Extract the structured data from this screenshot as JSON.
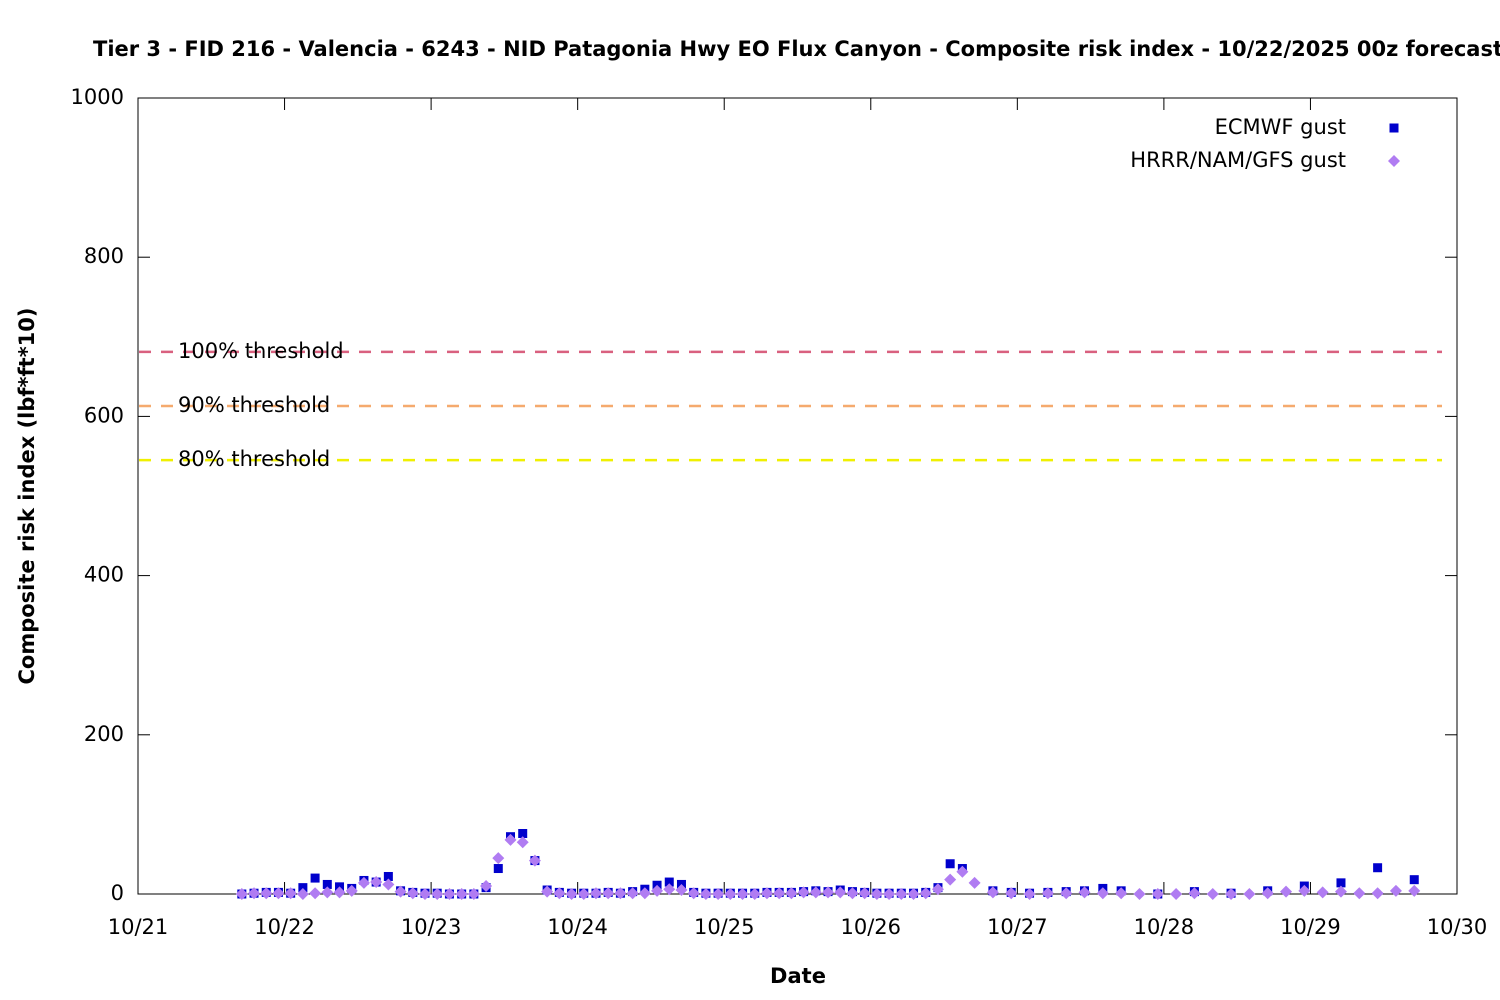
{
  "chart_data": {
    "type": "scatter",
    "title": "Tier 3 - FID 216 - Valencia - 6243 - NID Patagonia Hwy EO Flux Canyon - Composite risk index - 10/22/2025 00z forecast",
    "xlabel": "Date",
    "ylabel": "Composite risk index (lbf*ft*10)",
    "xlim": [
      0,
      216
    ],
    "xticks": [
      {
        "value": 0,
        "label": "10/21"
      },
      {
        "value": 24,
        "label": "10/22"
      },
      {
        "value": 48,
        "label": "10/23"
      },
      {
        "value": 72,
        "label": "10/24"
      },
      {
        "value": 96,
        "label": "10/25"
      },
      {
        "value": 120,
        "label": "10/26"
      },
      {
        "value": 144,
        "label": "10/27"
      },
      {
        "value": 168,
        "label": "10/28"
      },
      {
        "value": 192,
        "label": "10/29"
      },
      {
        "value": 216,
        "label": "10/30"
      }
    ],
    "ylim": [
      0,
      1000
    ],
    "yticks": [
      0,
      200,
      400,
      600,
      800,
      1000
    ],
    "legend": "upper right",
    "thresholds": [
      {
        "label": "100% threshold",
        "value": 681,
        "color": "#d9607f"
      },
      {
        "label": "90% threshold",
        "value": 613,
        "color": "#f5aa6e"
      },
      {
        "label": "80% threshold",
        "value": 545,
        "color": "#f0f000"
      }
    ],
    "series": [
      {
        "name": "ECMWF gust",
        "color": "#0000cc",
        "marker": "square",
        "x": [
          17,
          19,
          21,
          23,
          25,
          27,
          29,
          31,
          33,
          35,
          37,
          39,
          41,
          43,
          45,
          47,
          49,
          51,
          53,
          55,
          57,
          59,
          61,
          63,
          65,
          67,
          69,
          71,
          73,
          75,
          77,
          79,
          81,
          83,
          85,
          87,
          89,
          91,
          93,
          95,
          97,
          99,
          101,
          103,
          105,
          107,
          109,
          111,
          113,
          115,
          117,
          119,
          121,
          123,
          125,
          127,
          129,
          131,
          133,
          135,
          140,
          143,
          146,
          149,
          152,
          155,
          158,
          161,
          167,
          173,
          179,
          185,
          191,
          197,
          203,
          209
        ],
        "values": [
          0,
          1,
          2,
          2,
          1,
          8,
          20,
          12,
          9,
          7,
          17,
          15,
          22,
          4,
          2,
          1,
          1,
          0,
          0,
          0,
          8,
          32,
          72,
          76,
          42,
          5,
          2,
          1,
          1,
          1,
          2,
          1,
          3,
          6,
          11,
          15,
          12,
          2,
          1,
          1,
          1,
          1,
          1,
          2,
          2,
          2,
          3,
          4,
          3,
          5,
          3,
          2,
          1,
          1,
          1,
          1,
          2,
          8,
          38,
          32,
          4,
          2,
          1,
          2,
          3,
          4,
          7,
          4,
          0,
          3,
          1,
          4,
          10,
          14,
          33,
          18
        ]
      },
      {
        "name": "HRRR/NAM/GFS gust",
        "color": "#b07cf2",
        "marker": "diamond",
        "x": [
          17,
          19,
          21,
          23,
          25,
          27,
          29,
          31,
          33,
          35,
          37,
          39,
          41,
          43,
          45,
          47,
          49,
          51,
          53,
          55,
          57,
          59,
          61,
          63,
          65,
          67,
          69,
          71,
          73,
          75,
          77,
          79,
          81,
          83,
          85,
          87,
          89,
          91,
          93,
          95,
          97,
          99,
          101,
          103,
          105,
          107,
          109,
          111,
          113,
          115,
          117,
          119,
          121,
          123,
          125,
          127,
          129,
          131,
          133,
          135,
          137,
          140,
          143,
          146,
          149,
          152,
          155,
          158,
          161,
          164,
          167,
          170,
          173,
          176,
          179,
          182,
          185,
          188,
          191,
          194,
          197,
          200,
          203,
          206,
          209
        ],
        "values": [
          0,
          1,
          1,
          1,
          1,
          0,
          1,
          2,
          2,
          4,
          14,
          15,
          12,
          3,
          1,
          0,
          0,
          0,
          0,
          0,
          10,
          45,
          68,
          65,
          42,
          3,
          1,
          0,
          0,
          1,
          1,
          1,
          1,
          1,
          4,
          6,
          5,
          1,
          0,
          0,
          0,
          0,
          0,
          1,
          1,
          1,
          2,
          2,
          2,
          2,
          1,
          1,
          0,
          0,
          0,
          0,
          1,
          6,
          18,
          28,
          14,
          2,
          1,
          0,
          1,
          1,
          2,
          1,
          1,
          0,
          0,
          0,
          1,
          0,
          0,
          0,
          1,
          3,
          4,
          2,
          3,
          1,
          1,
          4,
          4
        ]
      }
    ]
  }
}
